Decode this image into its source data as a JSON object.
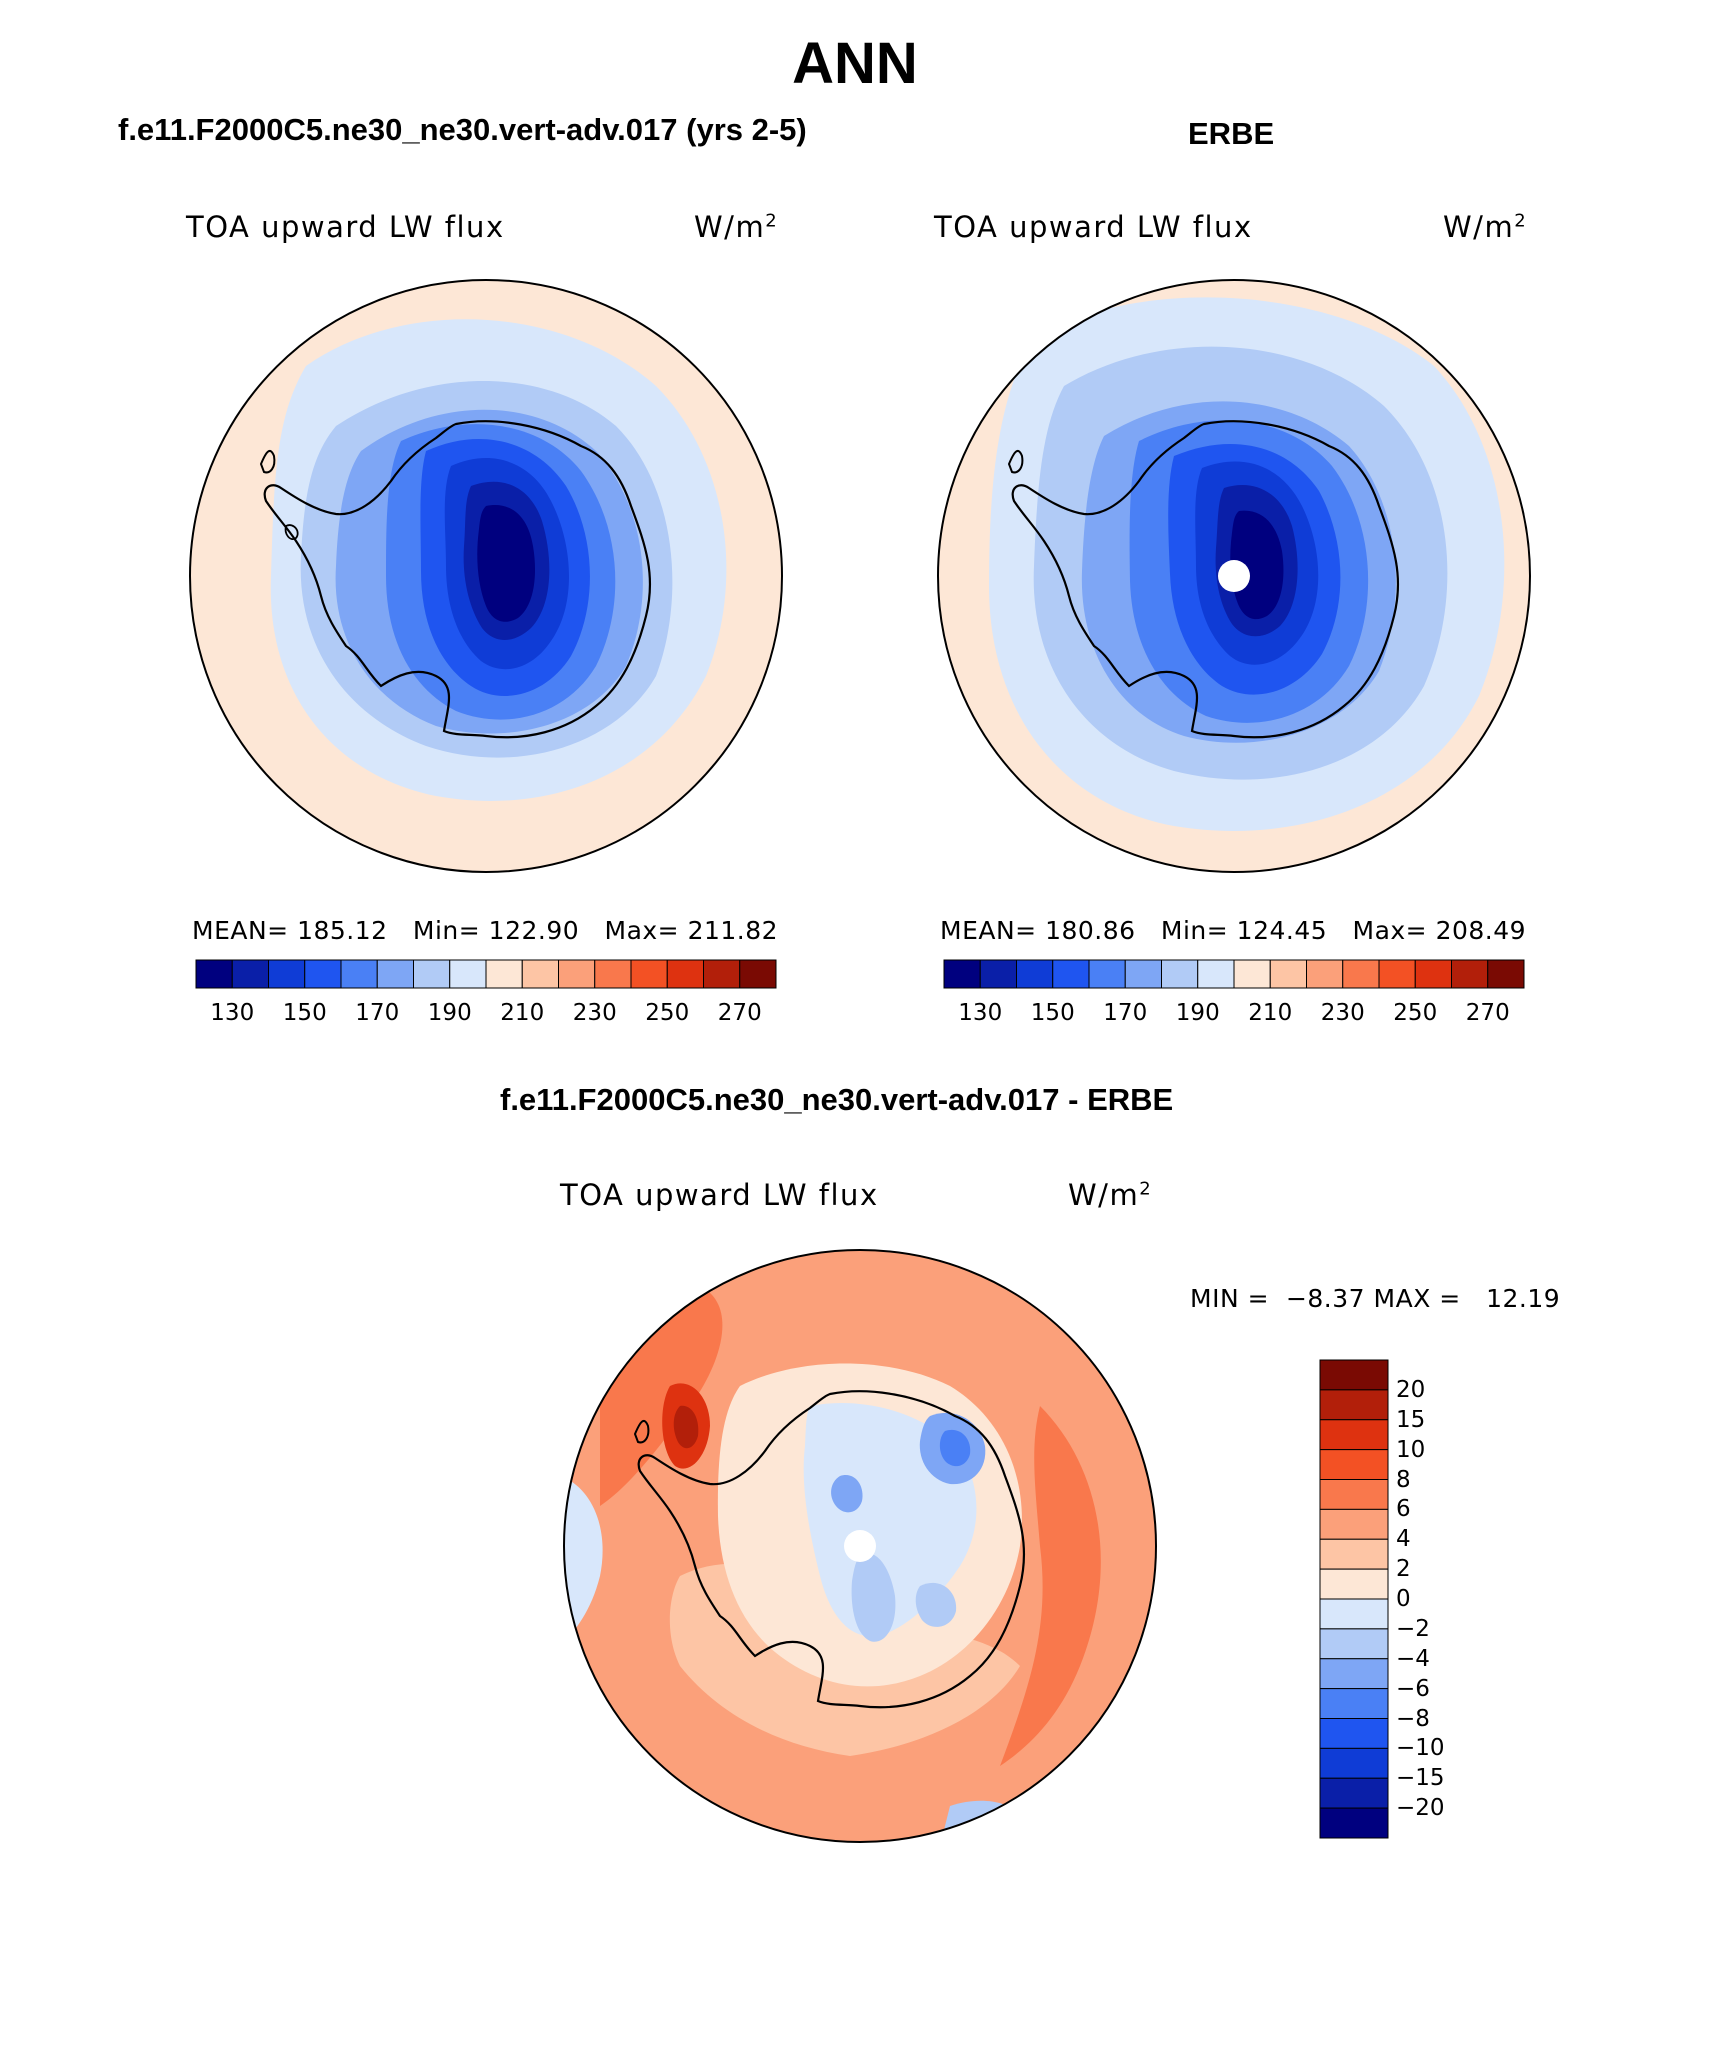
{
  "title": "ANN",
  "panels": [
    {
      "id": "model",
      "heading": "f.e11.F2000C5.ne30_ne30.vert-adv.017 (yrs 2-5)",
      "variable": "TOA upward LW flux",
      "units_base": "W/m",
      "units_exp": "2",
      "stats": {
        "mean_label": "MEAN=",
        "mean": "185.12",
        "min_label": "Min=",
        "min": "122.90",
        "max_label": "Max=",
        "max": "211.82"
      }
    },
    {
      "id": "obs",
      "heading": "ERBE",
      "variable": "TOA upward LW flux",
      "units_base": "W/m",
      "units_exp": "2",
      "stats": {
        "mean_label": "MEAN=",
        "mean": "180.86",
        "min_label": "Min=",
        "min": "124.45",
        "max_label": "Max=",
        "max": "208.49"
      }
    }
  ],
  "colorbar_horizontal": {
    "ticks": [
      "130",
      "150",
      "170",
      "190",
      "210",
      "230",
      "250",
      "270"
    ],
    "colors": [
      "#00007f",
      "#0a1fa8",
      "#0f3cd6",
      "#1f55f0",
      "#4a80f5",
      "#7ea6f5",
      "#b1cbf6",
      "#d8e7fb",
      "#fde7d6",
      "#fdc5a5",
      "#fba07a",
      "#f9784c",
      "#f35124",
      "#de3210",
      "#b21f0a",
      "#7a0a03"
    ]
  },
  "difference": {
    "heading": "f.e11.F2000C5.ne30_ne30.vert-adv.017 - ERBE",
    "variable": "TOA upward LW flux",
    "units_base": "W/m",
    "units_exp": "2",
    "min_label": "MIN =",
    "min": "−8.37",
    "max_label": "MAX =",
    "max": "12.19",
    "colorbar_labels": [
      "20",
      "15",
      "10",
      "8",
      "6",
      "4",
      "2",
      "0",
      "−2",
      "−4",
      "−6",
      "−8",
      "−10",
      "−15",
      "−20"
    ],
    "colorbar_colors": [
      "#7a0a03",
      "#b21f0a",
      "#de3210",
      "#f35124",
      "#f9784c",
      "#fba07a",
      "#fdc5a5",
      "#fde7d6",
      "#d8e7fb",
      "#b1cbf6",
      "#7ea6f5",
      "#4a80f5",
      "#1f55f0",
      "#0f3cd6",
      "#0a1fa8",
      "#00007f"
    ]
  }
}
